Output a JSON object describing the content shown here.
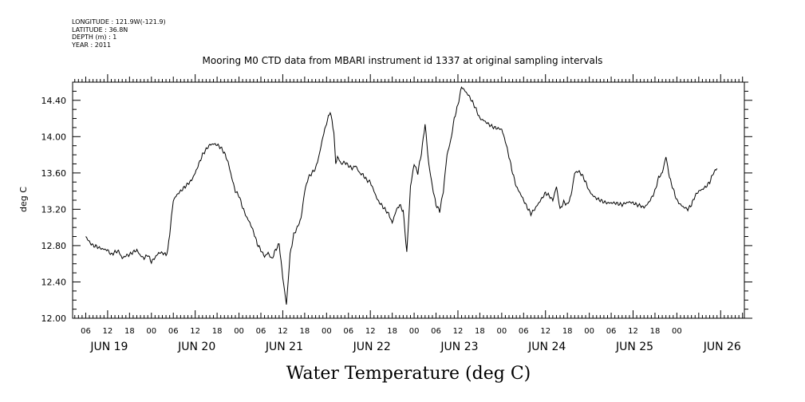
{
  "meta_lines": [
    "LONGITUDE : 121.9W(-121.9)",
    "LATITUDE : 36.8N",
    "DEPTH (m) : 1",
    "YEAR : 2011"
  ],
  "chart_data": {
    "type": "line",
    "title": "Mooring M0 CTD data from MBARI instrument id 1337 at original sampling intervals",
    "xlabel": "Water Temperature (deg C)",
    "ylabel": "deg C",
    "ylim": [
      12.0,
      14.6
    ],
    "xlim_hours": [
      0,
      174
    ],
    "y_ticks": [
      "12.00",
      "12.40",
      "12.80",
      "13.20",
      "13.60",
      "14.00",
      "14.40"
    ],
    "x_hour_ticks": [
      "06",
      "12",
      "18",
      "00",
      "06",
      "12",
      "18",
      "00",
      "06",
      "12",
      "18",
      "00",
      "06",
      "12",
      "18",
      "00",
      "06",
      "12",
      "18",
      "00",
      "06",
      "12",
      "18",
      "00",
      "06",
      "12",
      "18",
      "00"
    ],
    "x_day_ticks": [
      "JUN 19",
      "JUN 20",
      "JUN 21",
      "JUN 22",
      "JUN 23",
      "JUN 24",
      "JUN 25",
      "JUN 26"
    ],
    "grid": false,
    "legend": "none",
    "series": [
      {
        "points": [
          [
            0,
            12.9
          ],
          [
            1,
            12.84
          ],
          [
            2,
            12.8
          ],
          [
            3,
            12.79
          ],
          [
            4,
            12.77
          ],
          [
            5,
            12.76
          ],
          [
            6,
            12.75
          ],
          [
            7,
            12.7
          ],
          [
            8,
            12.73
          ],
          [
            9,
            12.74
          ],
          [
            10,
            12.66
          ],
          [
            11,
            12.69
          ],
          [
            12,
            12.7
          ],
          [
            13,
            12.73
          ],
          [
            14,
            12.75
          ],
          [
            15,
            12.69
          ],
          [
            16,
            12.66
          ],
          [
            17,
            12.7
          ],
          [
            18,
            12.62
          ],
          [
            19,
            12.67
          ],
          [
            20,
            12.72
          ],
          [
            21,
            12.72
          ],
          [
            22,
            12.7
          ],
          [
            22.5,
            12.75
          ],
          [
            23,
            12.93
          ],
          [
            24,
            13.3
          ],
          [
            25,
            13.36
          ],
          [
            26,
            13.4
          ],
          [
            27,
            13.44
          ],
          [
            28,
            13.48
          ],
          [
            29,
            13.52
          ],
          [
            30,
            13.6
          ],
          [
            31,
            13.7
          ],
          [
            32,
            13.8
          ],
          [
            33,
            13.86
          ],
          [
            34,
            13.91
          ],
          [
            35,
            13.92
          ],
          [
            36,
            13.91
          ],
          [
            37,
            13.88
          ],
          [
            38,
            13.82
          ],
          [
            39,
            13.72
          ],
          [
            40,
            13.55
          ],
          [
            41,
            13.4
          ],
          [
            42,
            13.35
          ],
          [
            43,
            13.22
          ],
          [
            44,
            13.12
          ],
          [
            45,
            13.05
          ],
          [
            46,
            12.95
          ],
          [
            47,
            12.82
          ],
          [
            48,
            12.75
          ],
          [
            49,
            12.68
          ],
          [
            50,
            12.72
          ],
          [
            51,
            12.65
          ],
          [
            52,
            12.75
          ],
          [
            53,
            12.82
          ],
          [
            54,
            12.45
          ],
          [
            55,
            12.15
          ],
          [
            56,
            12.7
          ],
          [
            57,
            12.92
          ],
          [
            58,
            13.0
          ],
          [
            59,
            13.1
          ],
          [
            60,
            13.4
          ],
          [
            61,
            13.55
          ],
          [
            62,
            13.6
          ],
          [
            63,
            13.65
          ],
          [
            64,
            13.8
          ],
          [
            65,
            14.0
          ],
          [
            66,
            14.15
          ],
          [
            67,
            14.28
          ],
          [
            68,
            14.05
          ],
          [
            68.5,
            13.7
          ],
          [
            69,
            13.78
          ],
          [
            70,
            13.7
          ],
          [
            71,
            13.72
          ],
          [
            72,
            13.68
          ],
          [
            73,
            13.65
          ],
          [
            74,
            13.68
          ],
          [
            75,
            13.6
          ],
          [
            76,
            13.58
          ],
          [
            77,
            13.52
          ],
          [
            78,
            13.5
          ],
          [
            79,
            13.4
          ],
          [
            80,
            13.3
          ],
          [
            81,
            13.25
          ],
          [
            82,
            13.2
          ],
          [
            83,
            13.15
          ],
          [
            84,
            13.05
          ],
          [
            85,
            13.18
          ],
          [
            86,
            13.25
          ],
          [
            87,
            13.18
          ],
          [
            88,
            12.72
          ],
          [
            89,
            13.45
          ],
          [
            90,
            13.7
          ],
          [
            91,
            13.6
          ],
          [
            92,
            13.82
          ],
          [
            93,
            14.14
          ],
          [
            94,
            13.7
          ],
          [
            95,
            13.45
          ],
          [
            96,
            13.25
          ],
          [
            97,
            13.18
          ],
          [
            98,
            13.4
          ],
          [
            99,
            13.8
          ],
          [
            100,
            13.95
          ],
          [
            101,
            14.2
          ],
          [
            102,
            14.35
          ],
          [
            103,
            14.55
          ],
          [
            104,
            14.5
          ],
          [
            105,
            14.45
          ],
          [
            106,
            14.38
          ],
          [
            107,
            14.3
          ],
          [
            108,
            14.2
          ],
          [
            109,
            14.18
          ],
          [
            110,
            14.15
          ],
          [
            111,
            14.12
          ],
          [
            112,
            14.1
          ],
          [
            113,
            14.09
          ],
          [
            114,
            14.08
          ],
          [
            115,
            13.95
          ],
          [
            116,
            13.78
          ],
          [
            117,
            13.6
          ],
          [
            118,
            13.45
          ],
          [
            119,
            13.38
          ],
          [
            120,
            13.3
          ],
          [
            121,
            13.22
          ],
          [
            122,
            13.15
          ],
          [
            123,
            13.2
          ],
          [
            124,
            13.26
          ],
          [
            125,
            13.32
          ],
          [
            126,
            13.38
          ],
          [
            127,
            13.35
          ],
          [
            128,
            13.3
          ],
          [
            129,
            13.45
          ],
          [
            130,
            13.2
          ],
          [
            131,
            13.28
          ],
          [
            132,
            13.25
          ],
          [
            133,
            13.35
          ],
          [
            134,
            13.6
          ],
          [
            135,
            13.62
          ],
          [
            136,
            13.58
          ],
          [
            137,
            13.5
          ],
          [
            138,
            13.4
          ],
          [
            139,
            13.35
          ],
          [
            140,
            13.32
          ],
          [
            141,
            13.3
          ],
          [
            142,
            13.28
          ],
          [
            143,
            13.27
          ],
          [
            144,
            13.27
          ],
          [
            145,
            13.27
          ],
          [
            146,
            13.26
          ],
          [
            147,
            13.25
          ],
          [
            148,
            13.27
          ],
          [
            149,
            13.28
          ],
          [
            150,
            13.27
          ],
          [
            151,
            13.25
          ],
          [
            152,
            13.24
          ],
          [
            153,
            13.22
          ],
          [
            154,
            13.26
          ],
          [
            155,
            13.32
          ],
          [
            156,
            13.4
          ],
          [
            157,
            13.55
          ],
          [
            158,
            13.6
          ],
          [
            159,
            13.78
          ],
          [
            160,
            13.55
          ],
          [
            161,
            13.42
          ],
          [
            162,
            13.3
          ],
          [
            163,
            13.25
          ],
          [
            164,
            13.22
          ],
          [
            165,
            13.2
          ],
          [
            166,
            13.25
          ],
          [
            167,
            13.35
          ],
          [
            168,
            13.4
          ],
          [
            169,
            13.42
          ],
          [
            170,
            13.45
          ],
          [
            171,
            13.5
          ],
          [
            172,
            13.6
          ],
          [
            173,
            13.65
          ]
        ]
      }
    ]
  }
}
